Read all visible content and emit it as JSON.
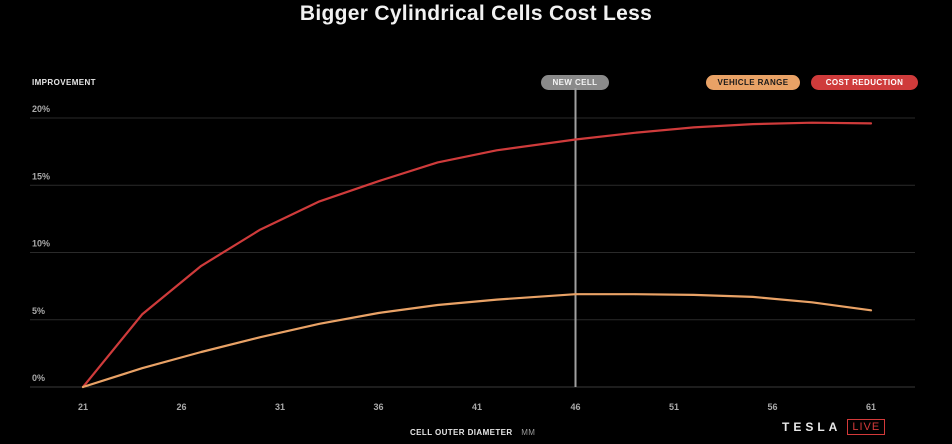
{
  "chart_data": {
    "type": "line",
    "title": "Bigger Cylindrical Cells Cost Less",
    "ylabel": "IMPROVEMENT",
    "xlabel": "CELL OUTER DIAMETER",
    "xunit": "MM",
    "x": [
      21,
      24,
      27,
      30,
      33,
      36,
      39,
      42,
      46,
      49,
      52,
      55,
      58,
      61
    ],
    "series": [
      {
        "name": "COST REDUCTION",
        "color": "#cf3b3b",
        "values": [
          0,
          5.4,
          9.0,
          11.7,
          13.8,
          15.3,
          16.7,
          17.6,
          18.4,
          18.9,
          19.3,
          19.55,
          19.65,
          19.6
        ]
      },
      {
        "name": "VEHICLE RANGE",
        "color": "#e9a266",
        "values": [
          0,
          1.4,
          2.6,
          3.7,
          4.7,
          5.5,
          6.1,
          6.5,
          6.9,
          6.9,
          6.85,
          6.7,
          6.3,
          5.7
        ]
      }
    ],
    "xticks": [
      "21",
      "26",
      "31",
      "36",
      "41",
      "46",
      "51",
      "56",
      "61"
    ],
    "yticks": [
      "0%",
      "5%",
      "10%",
      "15%",
      "20%"
    ],
    "ylim": [
      0,
      20
    ],
    "xlim": [
      21,
      61
    ],
    "marker": {
      "label": "NEW CELL",
      "x": 46
    },
    "legend": [
      "VEHICLE RANGE",
      "COST REDUCTION"
    ]
  },
  "branding": {
    "name": "TESLA",
    "badge": "LIVE"
  }
}
